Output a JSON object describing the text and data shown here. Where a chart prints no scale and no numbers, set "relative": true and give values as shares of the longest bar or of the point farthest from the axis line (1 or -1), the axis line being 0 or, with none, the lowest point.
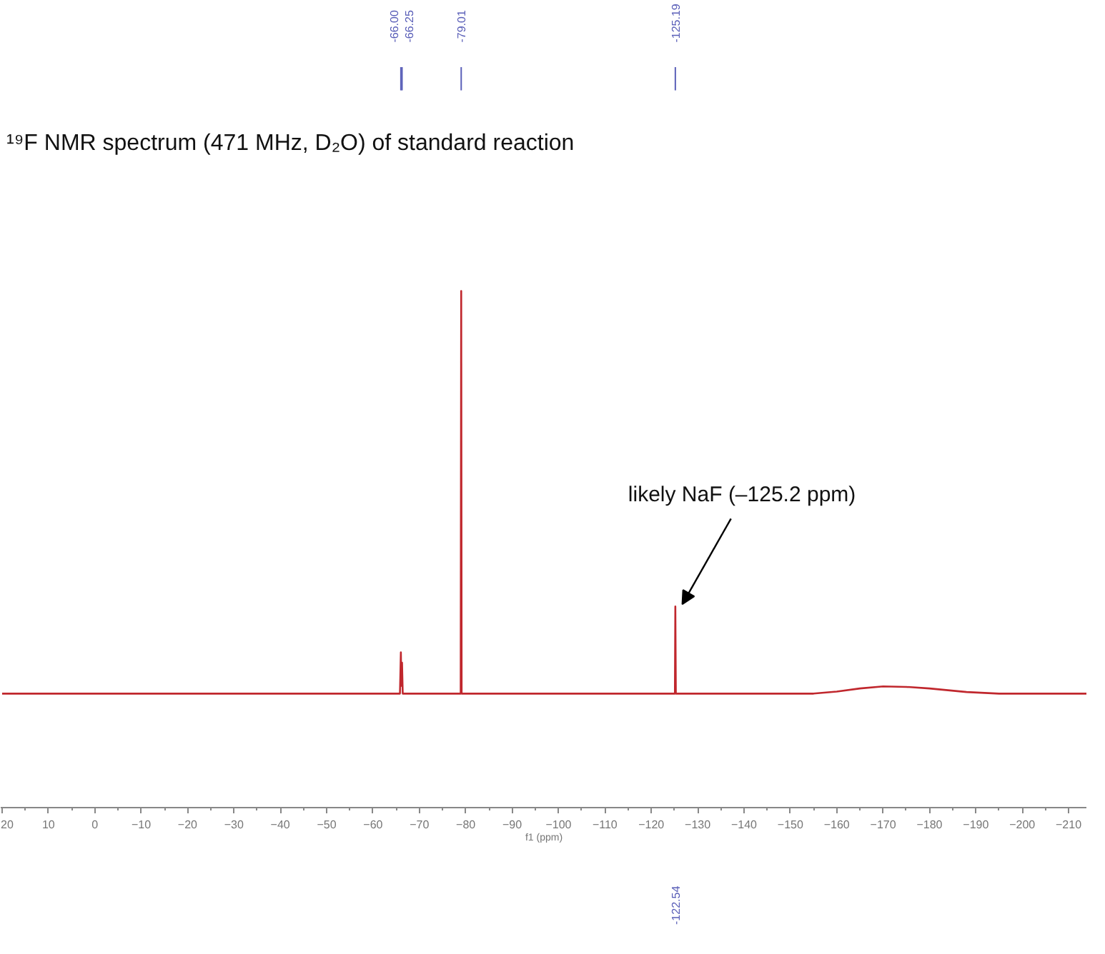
{
  "chart_data": {
    "type": "line",
    "title": "¹⁹F NMR spectrum (471 MHz, D₂O) of standard reaction",
    "xlabel": "f1 (ppm)",
    "relative": true,
    "x": [
      20,
      -65.8,
      -66.0,
      -66.1,
      -66.25,
      -66.4,
      -78.9,
      -79.01,
      -79.1,
      -125.1,
      -125.19,
      -125.3,
      -155,
      -160,
      -165,
      -170,
      -175,
      -180,
      -188,
      -195,
      -214
    ],
    "series": [
      {
        "color": "#c0272d",
        "values": [
          0.22,
          0.22,
          0.3,
          0.235,
          0.28,
          0.22,
          0.22,
          1,
          0.22,
          0.22,
          0.389,
          0.22,
          0.22,
          0.224,
          0.23,
          0.234,
          0.233,
          0.23,
          0.223,
          0.22,
          0.22
        ]
      }
    ],
    "xlim": [
      20.3,
      -214
    ],
    "xticks": [
      20,
      10,
      0,
      -10,
      -20,
      -30,
      -40,
      -50,
      -60,
      -70,
      -80,
      -90,
      -100,
      -110,
      -120,
      -130,
      -140,
      -150,
      -160,
      -170,
      -180,
      -190,
      -200,
      -210
    ],
    "annotations": [
      "-66.00",
      "-66.25",
      "-79.01",
      "-125.19",
      {
        "text": "likely NaF (–125.2 ppm)",
        "x": -125.19,
        "y": 0.389
      },
      "-122.54"
    ],
    "line_style": "solid"
  }
}
